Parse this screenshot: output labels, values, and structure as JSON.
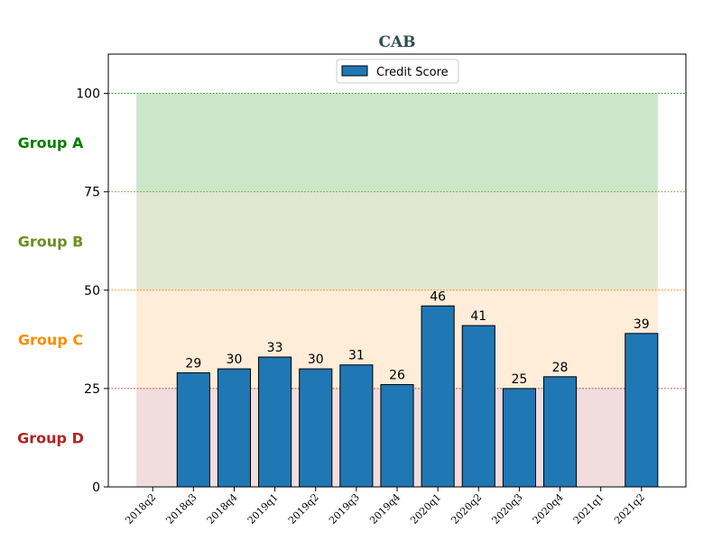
{
  "chart_data": {
    "type": "bar",
    "title": "CAB",
    "xlabel": "",
    "ylabel": "",
    "ylim": [
      0,
      110
    ],
    "yticks": [
      0,
      25,
      50,
      75,
      100
    ],
    "categories": [
      "2018q2",
      "2018q3",
      "2018q4",
      "2019q1",
      "2019q2",
      "2019q3",
      "2019q4",
      "2020q1",
      "2020q2",
      "2020q3",
      "2020q4",
      "2021q1",
      "2021q2"
    ],
    "series": [
      {
        "name": "Credit Score",
        "color": "#1f77b4",
        "values": [
          null,
          29,
          30,
          33,
          30,
          31,
          26,
          46,
          41,
          25,
          28,
          null,
          39
        ]
      }
    ],
    "legend_placement": "top-center",
    "bands": [
      {
        "label": "Group A",
        "from": 75,
        "to": 100,
        "color": "#2ca02c",
        "label_color": "#008000"
      },
      {
        "label": "Group B",
        "from": 50,
        "to": 75,
        "color": "#8aa14a",
        "label_color": "#6b8e23"
      },
      {
        "label": "Group C",
        "from": 25,
        "to": 50,
        "color": "#ffb366",
        "label_color": "#ff8c00"
      },
      {
        "label": "Group D",
        "from": 0,
        "to": 25,
        "color": "#c9737a",
        "label_color": "#b22222"
      }
    ]
  }
}
